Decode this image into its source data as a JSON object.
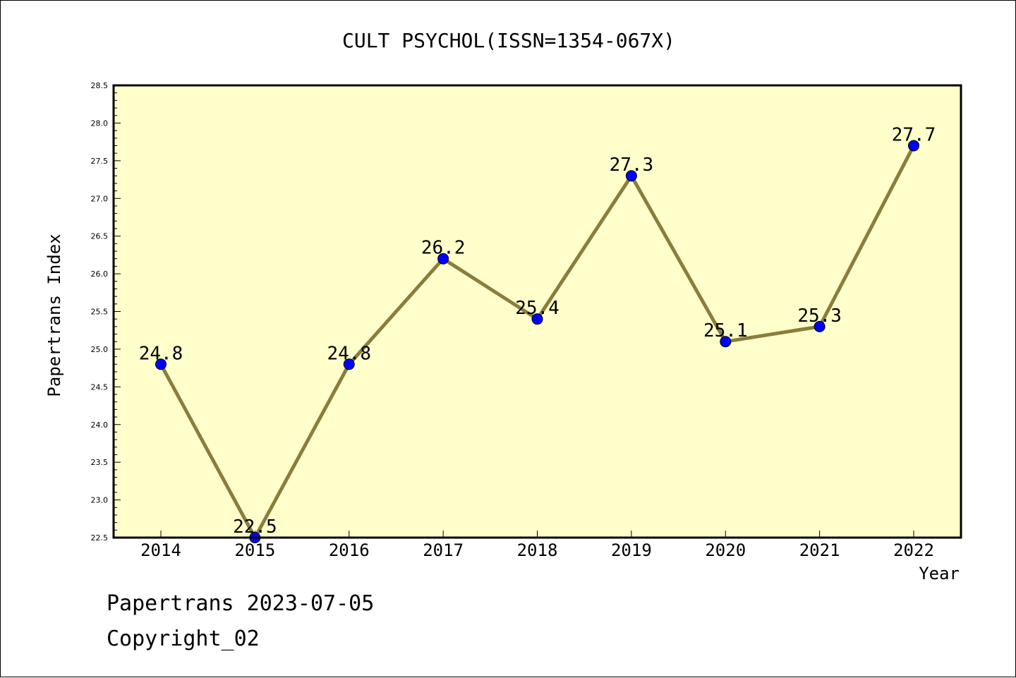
{
  "colors": {
    "plot_background": "#ffffcc",
    "line": "#8b7d3a",
    "marker": "#0000ff"
  },
  "chart_data": {
    "type": "line",
    "title": "CULT PSYCHOL(ISSN=1354-067X)",
    "xlabel": "Year",
    "ylabel": "Papertrans Index",
    "categories": [
      "2014",
      "2015",
      "2016",
      "2017",
      "2018",
      "2019",
      "2020",
      "2021",
      "2022"
    ],
    "series": [
      {
        "values": [
          24.8,
          22.5,
          24.8,
          26.2,
          25.4,
          27.3,
          25.1,
          25.3,
          27.7
        ]
      }
    ],
    "data_labels": [
      "24.8",
      "22.5",
      "24.8",
      "26.2",
      "25.4",
      "27.3",
      "25.1",
      "25.3",
      "27.7"
    ],
    "ylim": [
      22.5,
      28.5
    ],
    "yticks": [
      "22.5",
      "23.0",
      "23.5",
      "24.0",
      "24.5",
      "25.0",
      "25.5",
      "26.0",
      "26.5",
      "27.0",
      "27.5",
      "28.0",
      "28.5"
    ],
    "grid": false,
    "legend": "none"
  },
  "footer": {
    "line1": "Papertrans 2023-07-05",
    "line2": "Copyright_02"
  }
}
